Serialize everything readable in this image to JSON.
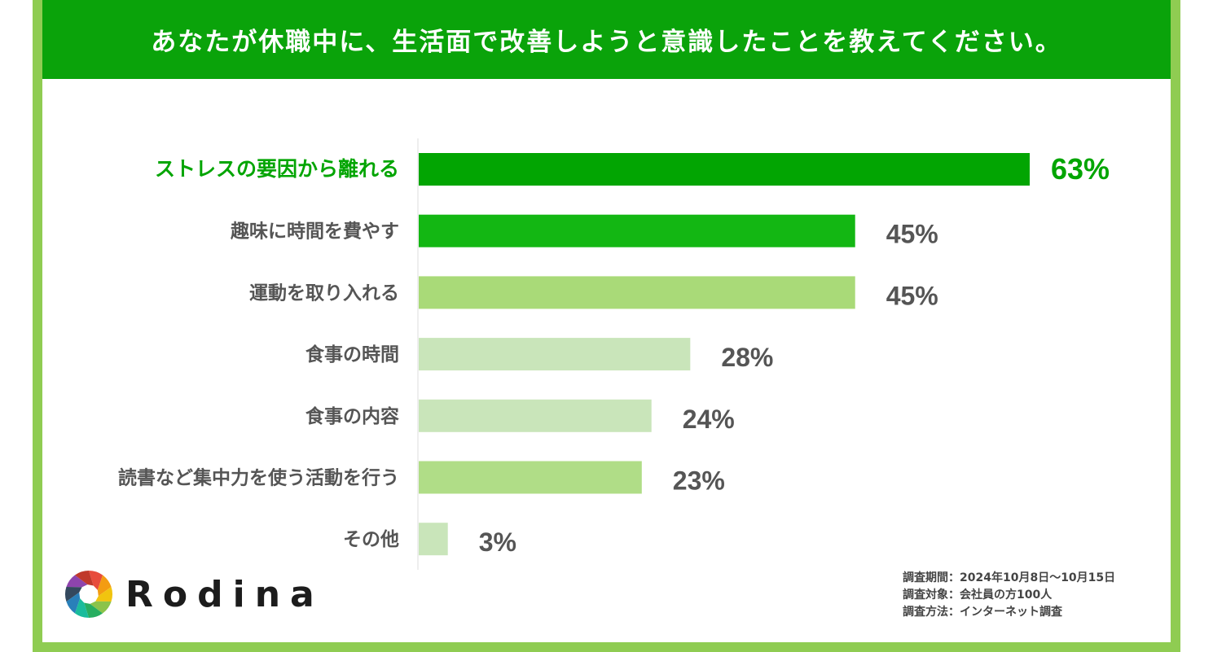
{
  "title": "あなたが休職中に、生活面で改善しようと意識したことを教えてください。",
  "chart_data": {
    "type": "bar",
    "orientation": "horizontal",
    "categories": [
      "ストレスの要因から離れる",
      "趣味に時間を費やす",
      "運動を取り入れる",
      "食事の時間",
      "食事の内容",
      "読書など集中力を使う活動を行う",
      "その他"
    ],
    "values": [
      63,
      45,
      45,
      28,
      24,
      23,
      3
    ],
    "value_labels": [
      "63%",
      "45%",
      "45%",
      "28%",
      "24%",
      "23%",
      "3%"
    ],
    "bar_colors": [
      "#02a502",
      "#13b713",
      "#a9da78",
      "#c9e5ba",
      "#c9e5ba",
      "#b0dd87",
      "#c9e5ba"
    ],
    "highlight_color": "#02a502",
    "label_color": "#555555",
    "xlim": [
      0,
      63
    ],
    "grid": false
  },
  "survey_notes": [
    "調査期間：2024年10月8日～10月15日",
    "調査対象：会社員の方100人",
    "調査方法：インターネット調査"
  ],
  "logo": {
    "text": "Rodina",
    "ring_colors": [
      "#e74c3c",
      "#f39c12",
      "#f1c40f",
      "#8bc34a",
      "#27ae60",
      "#1abc9c",
      "#2980b9",
      "#34495e",
      "#8e44ad",
      "#c0392b"
    ]
  }
}
